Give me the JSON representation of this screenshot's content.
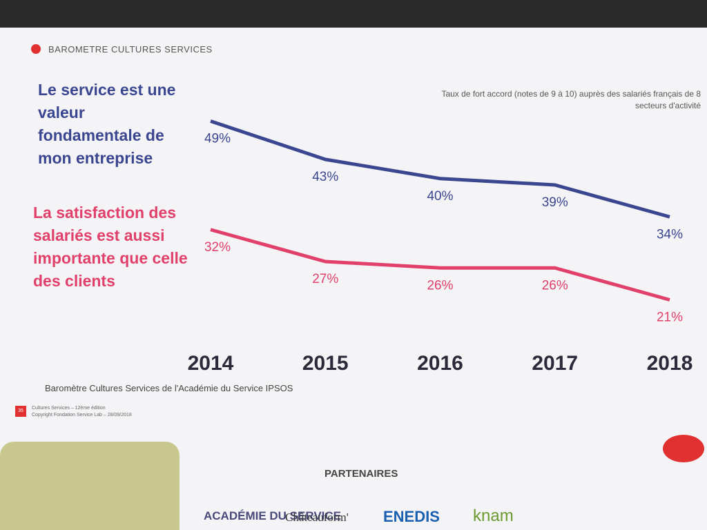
{
  "chart_data": {
    "type": "line",
    "title": "BAROMETRE CULTURES SERVICES",
    "subtitle": "Taux de fort accord (notes de 9 à 10) auprès des salariés français de 8 secteurs d'activité",
    "categories": [
      "2014",
      "2015",
      "2016",
      "2017",
      "2018"
    ],
    "series": [
      {
        "name": "Le service est une valeur fondamentale de mon entreprise",
        "color": "#3b4690",
        "values": [
          49,
          43,
          40,
          39,
          34
        ],
        "value_labels": [
          "49%",
          "43%",
          "40%",
          "39%",
          "34%"
        ]
      },
      {
        "name": "La satisfaction des salariés est aussi importante que celle des clients",
        "color": "#e0406a",
        "values": [
          32,
          27,
          26,
          26,
          21
        ],
        "value_labels": [
          "32%",
          "27%",
          "26%",
          "26%",
          "21%"
        ]
      }
    ],
    "ylim": [
      15,
      55
    ],
    "source": "Baromètre Cultures Services de l'Académie du Service IPSOS"
  },
  "footer": {
    "page": "35",
    "edition": "Cultures Services – 12ème édition",
    "copyright": "Copyright Fondation Service Lab – 28/09/2018"
  },
  "partners": {
    "title": "PARTENAIRES",
    "logos": [
      "ACADÉMIE DU SERVICE",
      "Châteauform'",
      "ENEDIS",
      "knam"
    ]
  }
}
